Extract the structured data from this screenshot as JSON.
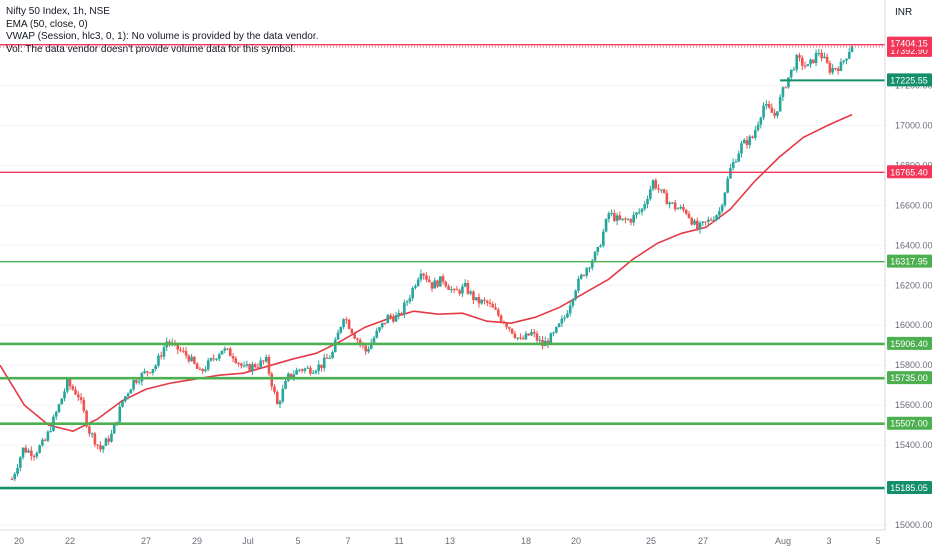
{
  "legend": {
    "title": "Nifty 50 Index, 1h, NSE",
    "ema": "EMA (50, close, 0)",
    "vwap": "VWAP (Session, hlc3, 0, 1): No volume is provided by the data vendor.",
    "vol": "Vol: The data vendor doesn't provide volume data for this symbol."
  },
  "currency": "INR",
  "colors": {
    "up": "#26a69a",
    "down": "#ef5350",
    "ema": "#e53946",
    "support": "#4caf50",
    "support_dark": "#138f6a",
    "resistance": "#f23658",
    "axis_text": "#6a6d78",
    "border": "#d6d8dc"
  },
  "chart_data": {
    "type": "candlestick",
    "interval": "1h",
    "x_ticks": [
      "20",
      "22",
      "27",
      "29",
      "Jul",
      "5",
      "7",
      "11",
      "13",
      "18",
      "20",
      "25",
      "27",
      "Aug",
      "3",
      "5"
    ],
    "y_ticks": [
      "17400.00",
      "17200.00",
      "17000.00",
      "16800.00",
      "16600.00",
      "16400.00",
      "16200.00",
      "16000.00",
      "15800.00",
      "15600.00",
      "15400.00",
      "15200.00",
      "15000.00"
    ],
    "ylim": [
      14960,
      17680
    ],
    "last_price": "17404.15",
    "horizontal_levels": [
      {
        "label": "17392.90",
        "value": 17392.9,
        "kind": "resistance",
        "style": "dotted"
      },
      {
        "label": "17225.55",
        "value": 17225.55,
        "kind": "support_dark",
        "style": "partial"
      },
      {
        "label": "16765.40",
        "value": 16765.4,
        "kind": "resistance",
        "style": "solid"
      },
      {
        "label": "16317.95",
        "value": 16317.95,
        "kind": "support",
        "style": "solid"
      },
      {
        "label": "15906.40",
        "value": 15906.4,
        "kind": "support",
        "style": "thick"
      },
      {
        "label": "15735.00",
        "value": 15735.0,
        "kind": "support",
        "style": "thick"
      },
      {
        "label": "15507.00",
        "value": 15507.0,
        "kind": "support",
        "style": "thick"
      },
      {
        "label": "15185.05",
        "value": 15185.05,
        "kind": "support_dark",
        "style": "thick"
      }
    ],
    "price_path": [
      15230,
      15380,
      15360,
      15420,
      15560,
      15710,
      15650,
      15470,
      15380,
      15450,
      15620,
      15720,
      15760,
      15800,
      15920,
      15880,
      15840,
      15760,
      15820,
      15880,
      15850,
      15780,
      15800,
      15820,
      15600,
      15740,
      15780,
      15780,
      15800,
      15860,
      16050,
      15950,
      15870,
      15960,
      16040,
      16040,
      16150,
      16280,
      16200,
      16230,
      16160,
      16190,
      16120,
      16110,
      16050,
      15990,
      15920,
      15960,
      15900,
      15950,
      16040,
      16190,
      16290,
      16370,
      16560,
      16520,
      16530,
      16580,
      16720,
      16640,
      16590,
      16570,
      16480,
      16520,
      16570,
      16780,
      16900,
      16940,
      17100,
      17050,
      17210,
      17330,
      17290,
      17370,
      17280,
      17300,
      17404
    ],
    "ema_path": [
      15800,
      15600,
      15500,
      15470,
      15530,
      15620,
      15680,
      15710,
      15730,
      15750,
      15760,
      15795,
      15830,
      15860,
      15920,
      15990,
      16035,
      16070,
      16055,
      16060,
      16020,
      16010,
      16040,
      16090,
      16160,
      16230,
      16330,
      16410,
      16460,
      16490,
      16580,
      16720,
      16840,
      16940,
      17000,
      17054
    ]
  }
}
